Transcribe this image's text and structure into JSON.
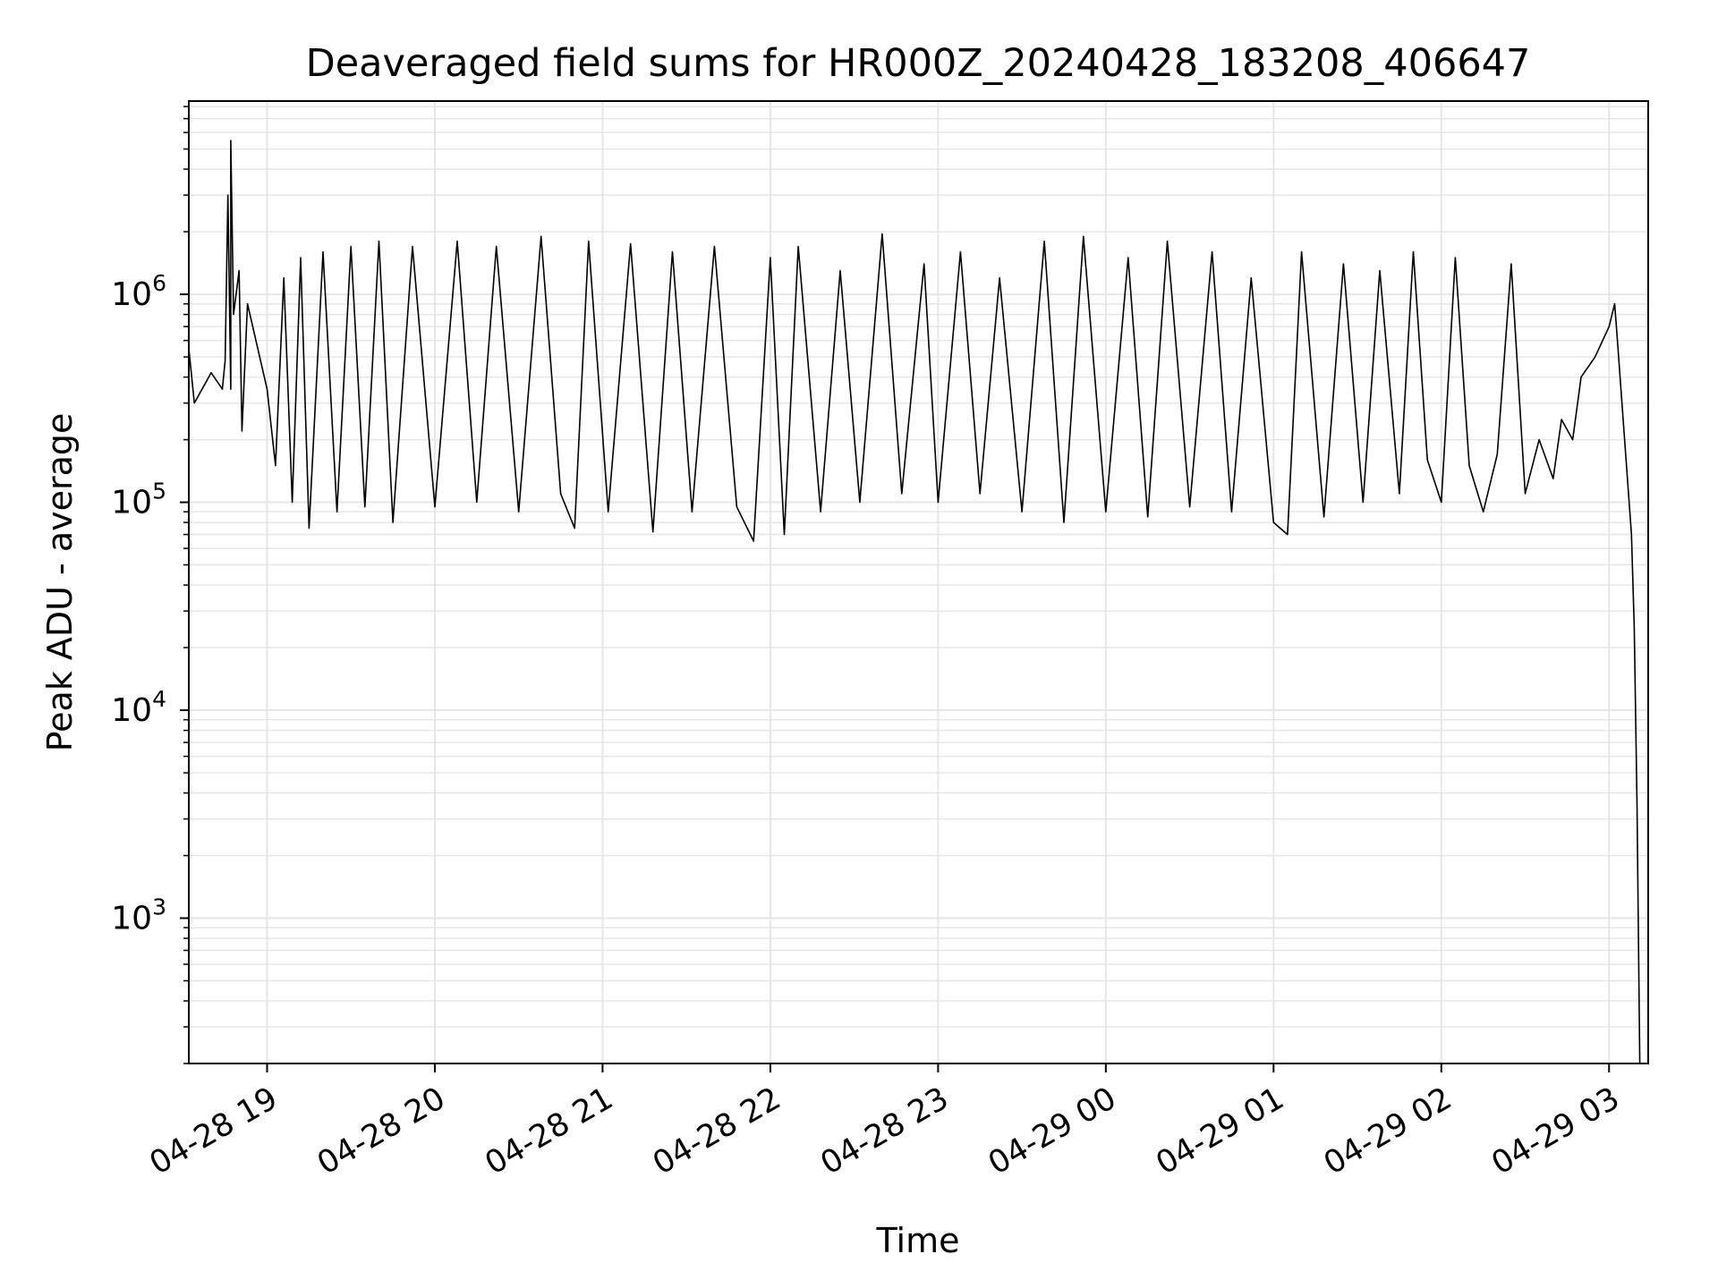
{
  "chart_data": {
    "type": "line",
    "title": "Deaveraged field sums for HR000Z_20240428_183208_406647",
    "xlabel": "Time",
    "ylabel": "Peak ADU - average",
    "y_scale": "log",
    "x_start": "04-28 18:32",
    "x_end": "04-29 03:14",
    "ylim": [
      200,
      8500000
    ],
    "grid": true,
    "legend": "none",
    "line_color": "#000000",
    "grid_color": "#e6e6e6",
    "x_ticks": [
      {
        "time": "04-28 19:00",
        "label": "04-28 19"
      },
      {
        "time": "04-28 20:00",
        "label": "04-28 20"
      },
      {
        "time": "04-28 21:00",
        "label": "04-28 21"
      },
      {
        "time": "04-28 22:00",
        "label": "04-28 22"
      },
      {
        "time": "04-28 23:00",
        "label": "04-28 23"
      },
      {
        "time": "04-29 00:00",
        "label": "04-29 00"
      },
      {
        "time": "04-29 01:00",
        "label": "04-29 01"
      },
      {
        "time": "04-29 02:00",
        "label": "04-29 02"
      },
      {
        "time": "04-29 03:00",
        "label": "04-29 03"
      }
    ],
    "y_ticks": [
      {
        "value": 1000,
        "base": "10",
        "exp": "3"
      },
      {
        "value": 10000,
        "base": "10",
        "exp": "4"
      },
      {
        "value": 100000,
        "base": "10",
        "exp": "5"
      },
      {
        "value": 1000000,
        "base": "10",
        "exp": "6"
      }
    ],
    "series": [
      {
        "points": [
          [
            "04-28 18:32",
            550000
          ],
          [
            "04-28 18:34",
            300000
          ],
          [
            "04-28 18:40",
            420000
          ],
          [
            "04-28 18:44",
            350000
          ],
          [
            "04-28 18:45",
            480000
          ],
          [
            "04-28 18:46",
            3000000
          ],
          [
            "04-28 18:47",
            350000
          ],
          [
            "04-28 18:47",
            5500000
          ],
          [
            "04-28 18:48",
            800000
          ],
          [
            "04-28 18:50",
            1300000
          ],
          [
            "04-28 18:51",
            220000
          ],
          [
            "04-28 18:53",
            900000
          ],
          [
            "04-28 18:56",
            600000
          ],
          [
            "04-28 19:00",
            350000
          ],
          [
            "04-28 19:03",
            150000
          ],
          [
            "04-28 19:06",
            1200000
          ],
          [
            "04-28 19:09",
            100000
          ],
          [
            "04-28 19:12",
            1500000
          ],
          [
            "04-28 19:15",
            75000
          ],
          [
            "04-28 19:20",
            1600000
          ],
          [
            "04-28 19:25",
            90000
          ],
          [
            "04-28 19:30",
            1700000
          ],
          [
            "04-28 19:35",
            95000
          ],
          [
            "04-28 19:40",
            1800000
          ],
          [
            "04-28 19:45",
            80000
          ],
          [
            "04-28 19:52",
            1700000
          ],
          [
            "04-28 20:00",
            95000
          ],
          [
            "04-28 20:08",
            1800000
          ],
          [
            "04-28 20:15",
            100000
          ],
          [
            "04-28 20:22",
            1700000
          ],
          [
            "04-28 20:30",
            90000
          ],
          [
            "04-28 20:38",
            1900000
          ],
          [
            "04-28 20:45",
            110000
          ],
          [
            "04-28 20:50",
            75000
          ],
          [
            "04-28 20:55",
            1800000
          ],
          [
            "04-28 21:02",
            90000
          ],
          [
            "04-28 21:10",
            1750000
          ],
          [
            "04-28 21:18",
            72000
          ],
          [
            "04-28 21:25",
            1600000
          ],
          [
            "04-28 21:32",
            90000
          ],
          [
            "04-28 21:40",
            1700000
          ],
          [
            "04-28 21:48",
            95000
          ],
          [
            "04-28 21:54",
            65000
          ],
          [
            "04-28 22:00",
            1500000
          ],
          [
            "04-28 22:05",
            70000
          ],
          [
            "04-28 22:10",
            1700000
          ],
          [
            "04-28 22:18",
            90000
          ],
          [
            "04-28 22:25",
            1300000
          ],
          [
            "04-28 22:32",
            100000
          ],
          [
            "04-28 22:40",
            1950000
          ],
          [
            "04-28 22:47",
            110000
          ],
          [
            "04-28 22:55",
            1400000
          ],
          [
            "04-28 23:00",
            100000
          ],
          [
            "04-28 23:08",
            1600000
          ],
          [
            "04-28 23:15",
            110000
          ],
          [
            "04-28 23:22",
            1200000
          ],
          [
            "04-28 23:30",
            90000
          ],
          [
            "04-28 23:38",
            1800000
          ],
          [
            "04-28 23:45",
            80000
          ],
          [
            "04-28 23:52",
            1900000
          ],
          [
            "04-29 00:00",
            90000
          ],
          [
            "04-29 00:08",
            1500000
          ],
          [
            "04-29 00:15",
            85000
          ],
          [
            "04-29 00:22",
            1800000
          ],
          [
            "04-29 00:30",
            95000
          ],
          [
            "04-29 00:38",
            1600000
          ],
          [
            "04-29 00:45",
            90000
          ],
          [
            "04-29 00:52",
            1200000
          ],
          [
            "04-29 01:00",
            80000
          ],
          [
            "04-29 01:05",
            70000
          ],
          [
            "04-29 01:10",
            1600000
          ],
          [
            "04-29 01:18",
            85000
          ],
          [
            "04-29 01:25",
            1400000
          ],
          [
            "04-29 01:32",
            100000
          ],
          [
            "04-29 01:38",
            1300000
          ],
          [
            "04-29 01:45",
            110000
          ],
          [
            "04-29 01:50",
            1600000
          ],
          [
            "04-29 01:55",
            160000
          ],
          [
            "04-29 02:00",
            100000
          ],
          [
            "04-29 02:05",
            1500000
          ],
          [
            "04-29 02:10",
            150000
          ],
          [
            "04-29 02:15",
            90000
          ],
          [
            "04-29 02:20",
            170000
          ],
          [
            "04-29 02:25",
            1400000
          ],
          [
            "04-29 02:30",
            110000
          ],
          [
            "04-29 02:35",
            200000
          ],
          [
            "04-29 02:40",
            130000
          ],
          [
            "04-29 02:43",
            250000
          ],
          [
            "04-29 02:47",
            200000
          ],
          [
            "04-29 02:50",
            400000
          ],
          [
            "04-29 02:55",
            500000
          ],
          [
            "04-29 03:00",
            700000
          ],
          [
            "04-29 03:02",
            900000
          ],
          [
            "04-29 03:03",
            600000
          ],
          [
            "04-29 03:08",
            70000
          ],
          [
            "04-29 03:09",
            25000
          ],
          [
            "04-29 03:10",
            3500
          ],
          [
            "04-29 03:11",
            200
          ]
        ]
      }
    ]
  }
}
